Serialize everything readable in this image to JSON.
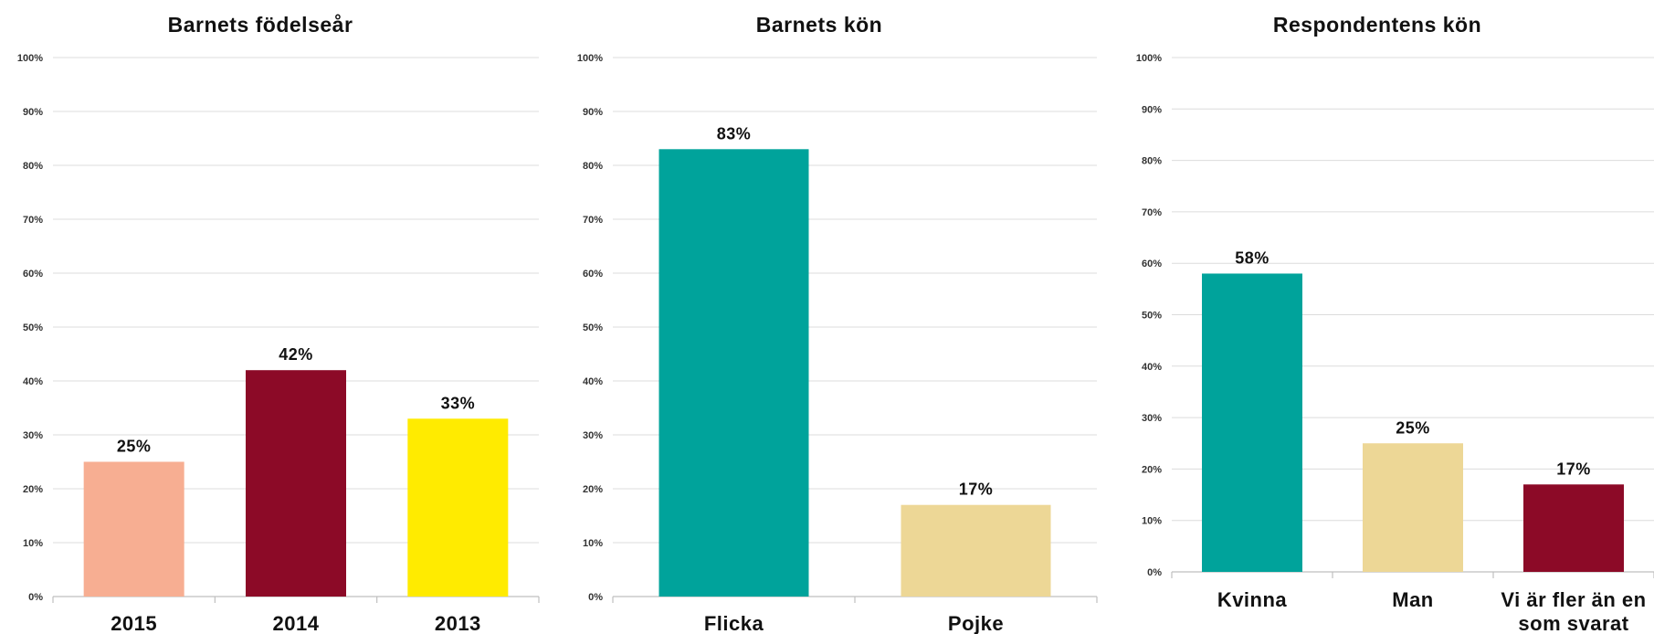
{
  "chart_data": [
    {
      "type": "bar",
      "title": "Barnets födelseår",
      "categories": [
        "2015",
        "2014",
        "2013"
      ],
      "values": [
        25,
        42,
        33
      ],
      "value_labels": [
        "25%",
        "42%",
        "33%"
      ],
      "colors": [
        "#F7AE92",
        "#8C0A27",
        "#FFEB00"
      ],
      "ylim": [
        0,
        100
      ],
      "yticks": [
        "0%",
        "10%",
        "20%",
        "30%",
        "40%",
        "50%",
        "60%",
        "70%",
        "80%",
        "90%",
        "100%"
      ],
      "grid": true,
      "legend": "none"
    },
    {
      "type": "bar",
      "title": "Barnets kön",
      "categories": [
        "Flicka",
        "Pojke"
      ],
      "values": [
        83,
        17
      ],
      "value_labels": [
        "83%",
        "17%"
      ],
      "colors": [
        "#00A39B",
        "#EDD796"
      ],
      "ylim": [
        0,
        100
      ],
      "yticks": [
        "0%",
        "10%",
        "20%",
        "30%",
        "40%",
        "50%",
        "60%",
        "70%",
        "80%",
        "90%",
        "100%"
      ],
      "grid": true,
      "legend": "none"
    },
    {
      "type": "bar",
      "title": "Respondentens kön",
      "categories": [
        "Kvinna",
        "Man",
        "Vi är fler än en som svarat"
      ],
      "category_lines": [
        [
          "Kvinna"
        ],
        [
          "Man"
        ],
        [
          "Vi är fler än en",
          "som svarat"
        ]
      ],
      "values": [
        58,
        25,
        17
      ],
      "value_labels": [
        "58%",
        "25%",
        "17%"
      ],
      "colors": [
        "#00A39B",
        "#EDD796",
        "#8C0A27"
      ],
      "ylim": [
        0,
        100
      ],
      "yticks": [
        "0%",
        "10%",
        "20%",
        "30%",
        "40%",
        "50%",
        "60%",
        "70%",
        "80%",
        "90%",
        "100%"
      ],
      "grid": true,
      "legend": "none"
    }
  ]
}
